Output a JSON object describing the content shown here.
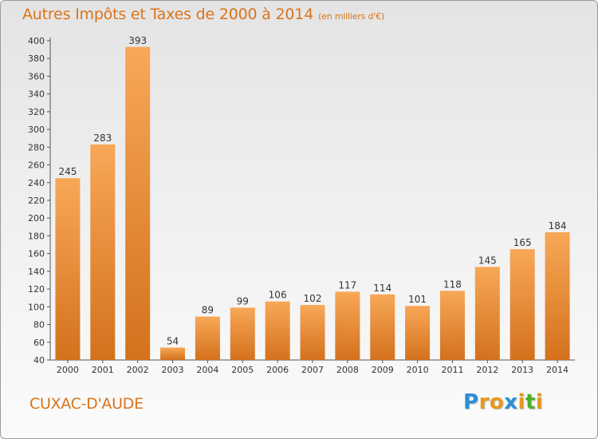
{
  "chart_data": {
    "type": "bar",
    "title": "Autres Impôts et Taxes de 2000 à 2014",
    "unit": "(en milliers d'€)",
    "categories": [
      "2000",
      "2001",
      "2002",
      "2003",
      "2004",
      "2005",
      "2006",
      "2007",
      "2008",
      "2009",
      "2010",
      "2011",
      "2012",
      "2013",
      "2014"
    ],
    "values": [
      245,
      283,
      393,
      54,
      89,
      99,
      106,
      102,
      117,
      114,
      101,
      118,
      145,
      165,
      184
    ],
    "ylim": [
      40,
      400
    ],
    "yticks": [
      40,
      60,
      80,
      100,
      120,
      140,
      160,
      180,
      200,
      220,
      240,
      260,
      280,
      300,
      320,
      340,
      360,
      380,
      400
    ],
    "grid": false,
    "bar_color_top": "#f7a857",
    "bar_color_bottom": "#d4711d"
  },
  "commune": "CUXAC-D'AUDE",
  "logo": {
    "letters": [
      "P",
      "r",
      "o",
      "x",
      "i",
      "t",
      "i"
    ],
    "colors": [
      "#2a8fd6",
      "#e8981d",
      "#e8981d",
      "#2a8fd6",
      "#e8981d",
      "#4caf2a",
      "#e8981d"
    ]
  },
  "colors": {
    "accent": "#d9741a"
  }
}
